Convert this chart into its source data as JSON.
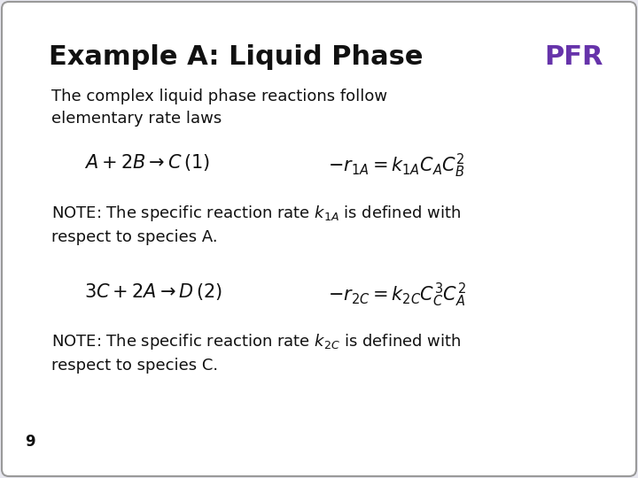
{
  "title_black": "Example A: Liquid Phase ",
  "title_purple": "PFR",
  "subtitle": "The complex liquid phase reactions follow\nelementary rate laws",
  "slide_number": "9",
  "bg_color": "#e8e8f0",
  "title_color": "#111111",
  "pfr_color": "#6633aa",
  "text_color": "#111111",
  "border_color": "#999999",
  "title_fontsize": 22,
  "subtitle_fontsize": 13,
  "eq_fontsize": 15,
  "note_fontsize": 13,
  "num_fontsize": 12
}
